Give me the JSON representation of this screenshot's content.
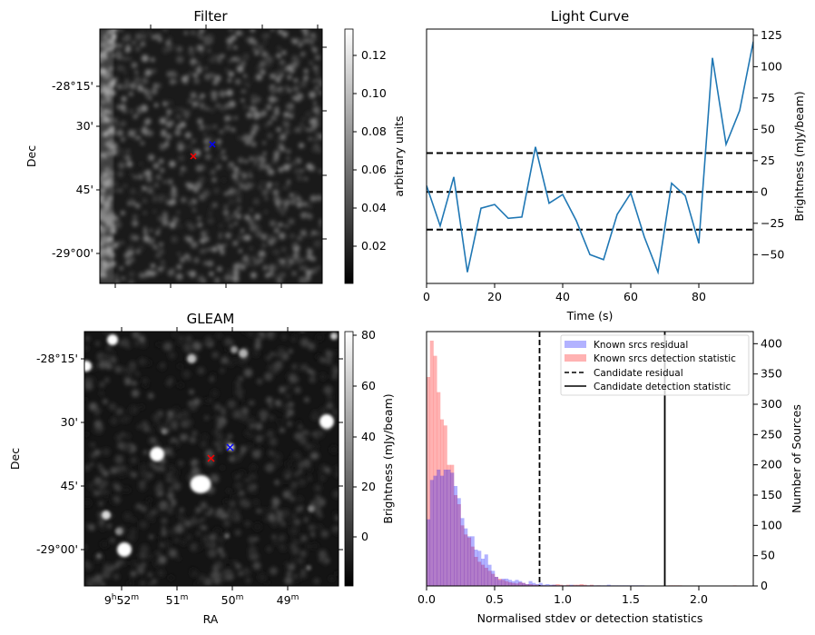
{
  "chart_data": [
    {
      "type": "heatmap",
      "title": "Filter",
      "xlabel": "",
      "ylabel": "Dec",
      "y_tick_labels": [
        "-28°15'",
        "30'",
        "45'",
        "-29°00'"
      ],
      "colorbar": {
        "label": "arbitrary units",
        "tick_labels": [
          "0.02",
          "0.04",
          "0.06",
          "0.08",
          "0.10",
          "0.12"
        ],
        "range": [
          0.0,
          0.132
        ],
        "colormap": "gray"
      },
      "markers": [
        {
          "name": "candidate",
          "symbol": "x",
          "color": "#ff0000",
          "ra": "9h50m22s",
          "dec": "-28°37'"
        },
        {
          "name": "known-source",
          "symbol": "x",
          "color": "#0000ff",
          "ra": "9h50m03s",
          "dec": "-28°35'"
        }
      ]
    },
    {
      "type": "line",
      "title": "Light Curve",
      "xlabel": "Time (s)",
      "ylabel": "Brightness (mJy/beam)",
      "xlim": [
        0,
        96
      ],
      "ylim": [
        -73,
        130
      ],
      "x_ticks": [
        0,
        20,
        40,
        60,
        80
      ],
      "y_ticks": [
        -50,
        -25,
        0,
        25,
        50,
        75,
        100,
        125
      ],
      "x_tick_labels": [
        "0",
        "20",
        "40",
        "60",
        "80"
      ],
      "y_tick_labels": [
        "−50",
        "−25",
        "0",
        "25",
        "50",
        "75",
        "100",
        "125"
      ],
      "series": [
        {
          "name": "light-curve",
          "color": "#1f77b4",
          "x": [
            0,
            4,
            8,
            12,
            16,
            20,
            24,
            28,
            32,
            36,
            40,
            44,
            48,
            52,
            56,
            60,
            64,
            68,
            72,
            76,
            80,
            84,
            88,
            92,
            96
          ],
          "y": [
            5,
            -27,
            12,
            -64,
            -13,
            -10,
            -21,
            -20,
            36,
            -9,
            -2,
            -23,
            -50,
            -54,
            -18,
            -1,
            -36,
            -64,
            7,
            -3,
            -41,
            107,
            38,
            65,
            120
          ]
        }
      ],
      "hlines": [
        {
          "y": 31,
          "style": "dashed",
          "color": "#000000"
        },
        {
          "y": 0,
          "style": "dashed",
          "color": "#000000"
        },
        {
          "y": -30,
          "style": "dashed",
          "color": "#000000"
        }
      ]
    },
    {
      "type": "heatmap",
      "title": "GLEAM",
      "xlabel": "RA",
      "ylabel": "Dec",
      "x_tick_labels": [
        "9h52m",
        "51m",
        "50m",
        "49m"
      ],
      "y_tick_labels": [
        "-28°15'",
        "30'",
        "45'",
        "-29°00'"
      ],
      "colorbar": {
        "label": "Brightness (mJy/beam)",
        "tick_labels": [
          "0",
          "20",
          "40",
          "60",
          "80"
        ],
        "range": [
          -17,
          82
        ],
        "colormap": "gray"
      },
      "markers": [
        {
          "name": "candidate",
          "symbol": "x",
          "color": "#ff0000",
          "ra": "9h50m22s",
          "dec": "-28°38'"
        },
        {
          "name": "known-source",
          "symbol": "x",
          "color": "#0000ff",
          "ra": "9h50m03s",
          "dec": "-28°36'"
        }
      ]
    },
    {
      "type": "bar",
      "title": "",
      "xlabel": "Normalised stdev or detection statistics",
      "ylabel": "Number of Sources",
      "xlim": [
        0,
        2.4
      ],
      "ylim": [
        0,
        420
      ],
      "x_tick_labels": [
        "0.0",
        "0.5",
        "1.0",
        "1.5",
        "2.0"
      ],
      "x_ticks": [
        0,
        0.5,
        1.0,
        1.5,
        2.0
      ],
      "y_ticks": [
        0,
        50,
        100,
        150,
        200,
        250,
        300,
        350,
        400
      ],
      "y_tick_labels": [
        "0",
        "50",
        "100",
        "150",
        "200",
        "250",
        "300",
        "350",
        "400"
      ],
      "bin_width": 0.025,
      "legend_position": "top-right",
      "series": [
        {
          "name": "Known srcs residual",
          "color": "#0000ff",
          "alpha": 0.3,
          "bin_start": 0.0,
          "values": [
            110,
            175,
            182,
            192,
            182,
            192,
            192,
            187,
            165,
            145,
            112,
            95,
            82,
            82,
            60,
            58,
            45,
            52,
            35,
            25,
            15,
            10,
            12,
            12,
            10,
            8,
            10,
            8,
            5,
            3,
            8,
            5,
            3,
            5,
            2,
            3,
            2,
            2,
            1,
            1,
            1,
            1,
            2,
            1,
            1,
            1,
            1,
            1,
            1,
            1,
            1,
            1,
            1,
            2,
            1,
            1,
            1,
            1,
            1,
            1,
            1,
            1,
            1,
            1
          ]
        },
        {
          "name": "Known srcs detection statistic",
          "color": "#ff0000",
          "alpha": 0.3,
          "bin_start": 0.0,
          "values": [
            345,
            405,
            380,
            320,
            275,
            265,
            200,
            200,
            150,
            135,
            100,
            85,
            80,
            65,
            48,
            40,
            35,
            30,
            25,
            20,
            15,
            12,
            10,
            8,
            6,
            5,
            4,
            6,
            5,
            3,
            3,
            2,
            2,
            1,
            1,
            0,
            1,
            2,
            3,
            2,
            1,
            2,
            1,
            2,
            2,
            3,
            2,
            1,
            2,
            0,
            1,
            0,
            0,
            0,
            0,
            0,
            0,
            0,
            0,
            0,
            0,
            0,
            0,
            0,
            0,
            0,
            0,
            0,
            0,
            0,
            0,
            1,
            1,
            1,
            1,
            0,
            0,
            0,
            0,
            0,
            0,
            0,
            0,
            0,
            0,
            0,
            0,
            0,
            0,
            0,
            1
          ]
        },
        {
          "name": "Candidate residual",
          "type": "vline",
          "style": "dashed",
          "color": "#000000",
          "x": 0.83
        },
        {
          "name": "Candidate detection statistic",
          "type": "vline",
          "style": "solid",
          "color": "#000000",
          "x": 1.75
        }
      ]
    }
  ]
}
